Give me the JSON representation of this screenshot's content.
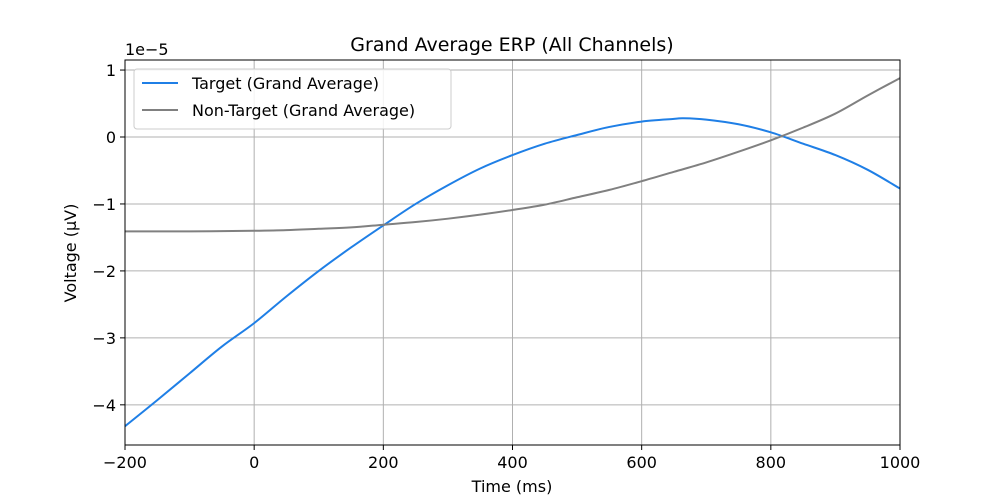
{
  "chart_data": {
    "type": "line",
    "title": "Grand Average ERP (All Channels)",
    "xlabel": "Time (ms)",
    "ylabel": "Voltage (μV)",
    "y_offset_label": "1e−5",
    "xlim": [
      -200,
      1000
    ],
    "ylim": [
      -4.6e-05,
      1.15e-05
    ],
    "xticks": [
      -200,
      0,
      200,
      400,
      600,
      800,
      1000
    ],
    "xtick_labels": [
      "−200",
      "0",
      "200",
      "400",
      "600",
      "800",
      "1000"
    ],
    "yticks": [
      -4e-05,
      -3e-05,
      -2e-05,
      -1e-05,
      0,
      1e-05
    ],
    "ytick_labels": [
      "−4",
      "−3",
      "−2",
      "−1",
      "0",
      "1"
    ],
    "grid": true,
    "legend_position": "top-left",
    "series": [
      {
        "name": "Target (Grand Average)",
        "color": "#1f7fe6",
        "x": [
          -200,
          -150,
          -100,
          -50,
          0,
          50,
          100,
          150,
          200,
          250,
          300,
          350,
          400,
          450,
          500,
          550,
          600,
          650,
          665,
          700,
          750,
          800,
          850,
          900,
          950,
          1000
        ],
        "y": [
          -4.32e-05,
          -3.93e-05,
          -3.53e-05,
          -3.13e-05,
          -2.78e-05,
          -2.38e-05,
          -2e-05,
          -1.65e-05,
          -1.32e-05,
          -1e-05,
          -7.2e-06,
          -4.7e-06,
          -2.7e-06,
          -1e-06,
          3e-07,
          1.5e-06,
          2.3e-06,
          2.7e-06,
          2.8e-06,
          2.6e-06,
          1.9e-06,
          7e-07,
          -1e-06,
          -2.7e-06,
          -4.9e-06,
          -7.7e-06
        ]
      },
      {
        "name": "Non-Target (Grand Average)",
        "color": "#808080",
        "x": [
          -200,
          -150,
          -100,
          -50,
          0,
          50,
          100,
          150,
          200,
          250,
          300,
          350,
          400,
          450,
          500,
          550,
          600,
          650,
          700,
          750,
          800,
          850,
          900,
          950,
          1000
        ],
        "y": [
          -1.41e-05,
          -1.41e-05,
          -1.41e-05,
          -1.405e-05,
          -1.4e-05,
          -1.39e-05,
          -1.37e-05,
          -1.35e-05,
          -1.31e-05,
          -1.27e-05,
          -1.22e-05,
          -1.16e-05,
          -1.09e-05,
          -1.01e-05,
          -9e-06,
          -7.9e-06,
          -6.6e-06,
          -5.2e-06,
          -3.8e-06,
          -2.2e-06,
          -5e-07,
          1.4e-06,
          3.5e-06,
          6.2e-06,
          8.8e-06
        ]
      }
    ]
  }
}
